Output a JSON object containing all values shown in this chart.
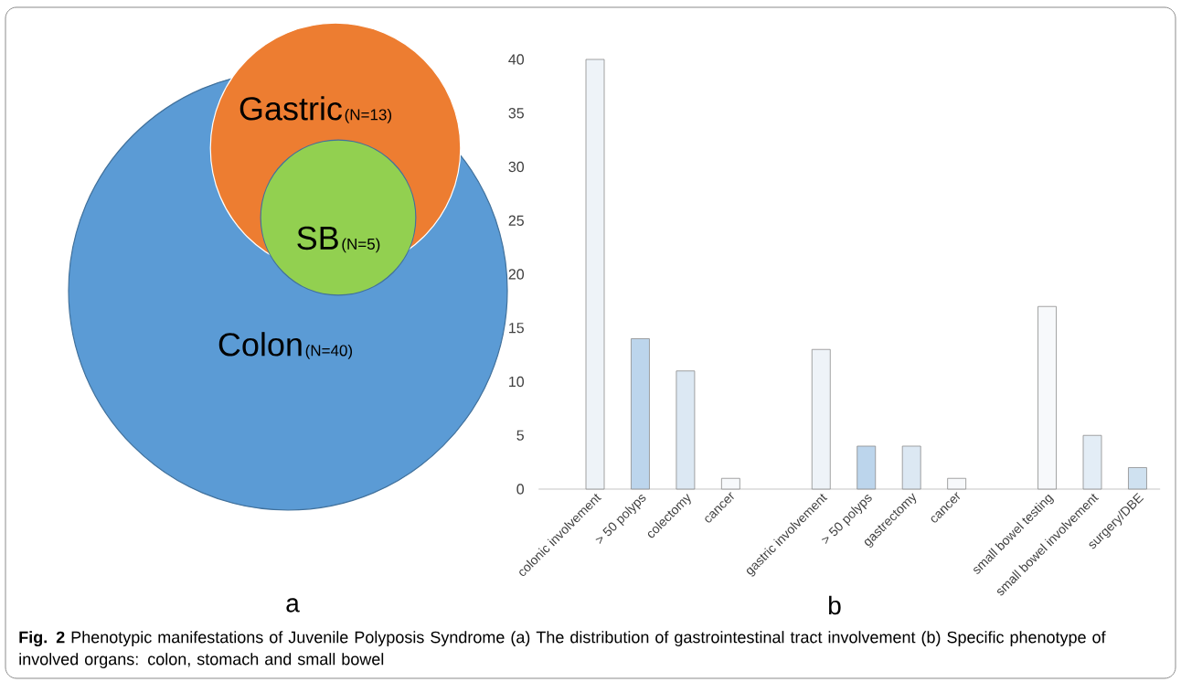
{
  "chart_data": [
    {
      "type": "other",
      "categories": [
        "Colon",
        "Gastric",
        "SB"
      ],
      "values": [
        40,
        13,
        5
      ],
      "value_labels": [
        "(N=40)",
        "(N=13)",
        "(N=5)"
      ],
      "colors": [
        "#5b9bd5",
        "#ed7d31",
        "#92d050"
      ],
      "annotations": [
        "a"
      ]
    },
    {
      "type": "bar",
      "categories": [
        "colonic involvement",
        "> 50 polyps",
        "colectomy",
        "cancer",
        null,
        "gastric involvement",
        "> 50 polyps",
        "gastrectomy",
        "cancer",
        null,
        "small bowel testing",
        "small bowel involvement",
        "surgery/DBE"
      ],
      "values": [
        40,
        14,
        11,
        1,
        null,
        13,
        4,
        4,
        1,
        null,
        17,
        5,
        2
      ],
      "colors": [
        "#eef3f8",
        "#bcd5ec",
        "#dce8f3",
        "#f7f9fb",
        null,
        "#eef3f8",
        "#bcd5ec",
        "#dce8f3",
        "#f7f9fb",
        null,
        "#f7f9fb",
        "#e3edf6",
        "#cfe1f0"
      ],
      "ylim": [
        0,
        40
      ],
      "yticks": [
        0,
        5,
        10,
        15,
        20,
        25,
        30,
        35,
        40
      ],
      "annotations": [
        "b",
        "**Fig. 2** Phenotypic manifestations of Juvenile Polyposis Syndrome (a) The distribution of gastrointestinal tract involvement (b) Specific phenotype of involved organs: colon, stomach and small bowel"
      ]
    }
  ]
}
